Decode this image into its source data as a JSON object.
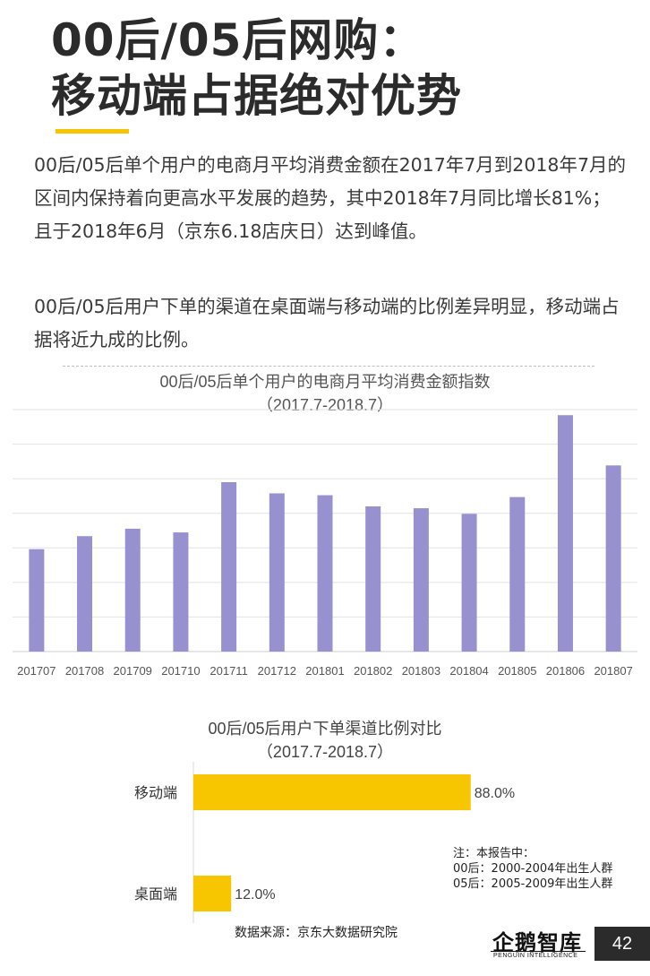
{
  "header": {
    "title_line1": "00后/05后网购：",
    "title_line2": "移动端占据绝对优势"
  },
  "body": {
    "paragraph1": "00后/05后单个用户的电商月平均消费金额在2017年7月到2018年7月的区间内保持着向更高水平发展的趋势，其中2018年7月同比增长81%；且于2018年6月（京东6.18店庆日）达到峰值。",
    "paragraph2": "00后/05后用户下单的渠道在桌面端与移动端的比例差异明显，移动端占据将近九成的比例。"
  },
  "chart_data": [
    {
      "type": "bar",
      "title": "00后/05后单个用户的电商月平均消费金额指数",
      "subtitle": "（2017.7-2018.7）",
      "categories": [
        "201707",
        "201708",
        "201709",
        "201710",
        "201711",
        "201712",
        "201801",
        "201802",
        "201803",
        "201804",
        "201805",
        "201806",
        "201807"
      ],
      "values": [
        27.5,
        31,
        33,
        32,
        45.5,
        42.5,
        42,
        39,
        38.5,
        37,
        41.5,
        63.5,
        50
      ],
      "ylim": [
        0,
        65
      ],
      "grid": true,
      "color": "#9791d0"
    },
    {
      "type": "bar",
      "orientation": "horizontal",
      "title": "00后/05后用户下单渠道比例对比",
      "subtitle": "（2017.7-2018.7）",
      "categories": [
        "移动端",
        "桌面端"
      ],
      "values": [
        88.0,
        12.0
      ],
      "value_labels": [
        "88.0%",
        "12.0%"
      ],
      "xlim": [
        0,
        100
      ],
      "color": "#f8c600"
    }
  ],
  "note": {
    "line1": "注：本报告中：",
    "line2": "00后：2000-2004年出生人群",
    "line3": "05后：2005-2009年出生人群"
  },
  "source": "数据来源：京东大数据研究院",
  "logo": {
    "cn": "企鹅智库",
    "en": "PENGUIN INTELLIGENCE"
  },
  "page_number": "42"
}
